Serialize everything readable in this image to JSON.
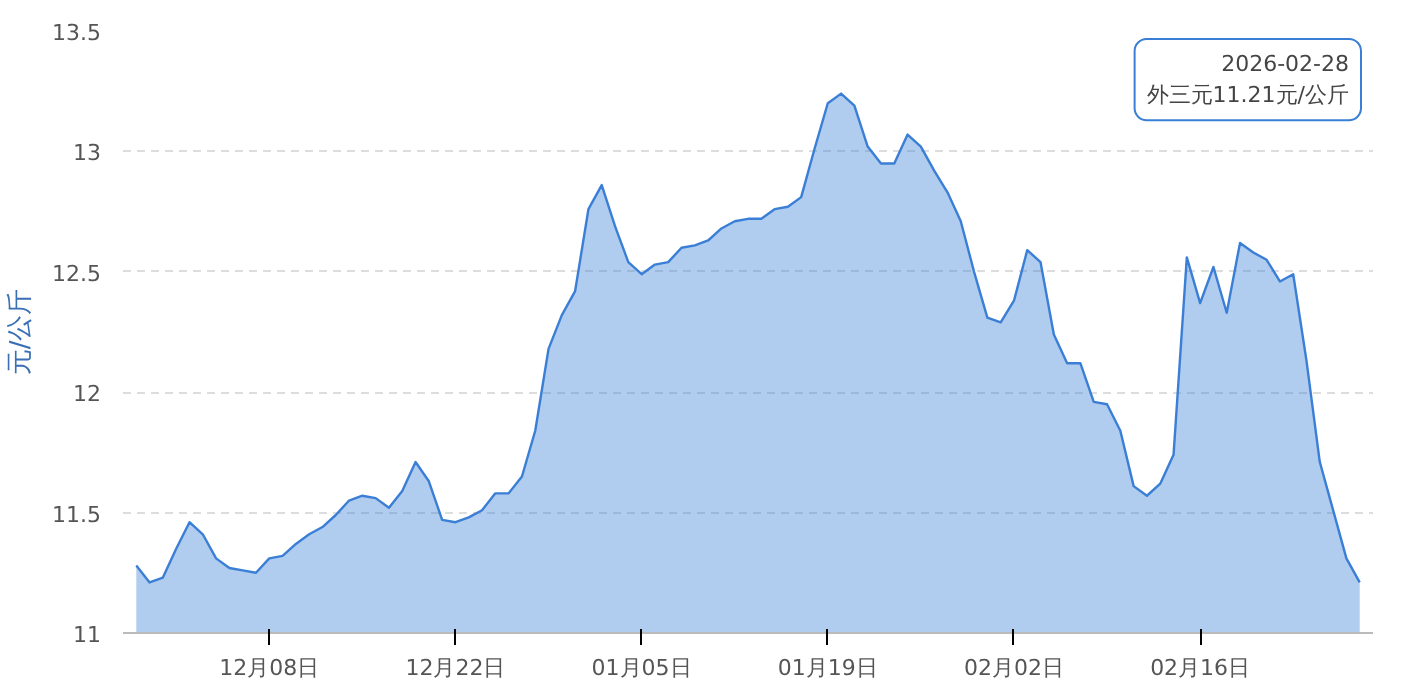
{
  "chart_data": {
    "type": "area",
    "ylabel": "元/公斤",
    "x": [
      "2025-11-28",
      "2025-11-29",
      "2025-11-30",
      "2025-12-01",
      "2025-12-02",
      "2025-12-03",
      "2025-12-04",
      "2025-12-05",
      "2025-12-06",
      "2025-12-07",
      "2025-12-08",
      "2025-12-09",
      "2025-12-10",
      "2025-12-11",
      "2025-12-12",
      "2025-12-13",
      "2025-12-14",
      "2025-12-15",
      "2025-12-16",
      "2025-12-17",
      "2025-12-18",
      "2025-12-19",
      "2025-12-20",
      "2025-12-21",
      "2025-12-22",
      "2025-12-23",
      "2025-12-24",
      "2025-12-25",
      "2025-12-26",
      "2025-12-27",
      "2025-12-28",
      "2025-12-29",
      "2025-12-30",
      "2025-12-31",
      "2026-01-01",
      "2026-01-02",
      "2026-01-03",
      "2026-01-04",
      "2026-01-05",
      "2026-01-06",
      "2026-01-07",
      "2026-01-08",
      "2026-01-09",
      "2026-01-10",
      "2026-01-11",
      "2026-01-12",
      "2026-01-13",
      "2026-01-14",
      "2026-01-15",
      "2026-01-16",
      "2026-01-17",
      "2026-01-18",
      "2026-01-19",
      "2026-01-20",
      "2026-01-21",
      "2026-01-22",
      "2026-01-23",
      "2026-01-24",
      "2026-01-25",
      "2026-01-26",
      "2026-01-27",
      "2026-01-28",
      "2026-01-29",
      "2026-01-30",
      "2026-01-31",
      "2026-02-01",
      "2026-02-02",
      "2026-02-03",
      "2026-02-04",
      "2026-02-05",
      "2026-02-06",
      "2026-02-07",
      "2026-02-08",
      "2026-02-09",
      "2026-02-10",
      "2026-02-11",
      "2026-02-12",
      "2026-02-13",
      "2026-02-14",
      "2026-02-15",
      "2026-02-16",
      "2026-02-17",
      "2026-02-18",
      "2026-02-19",
      "2026-02-20",
      "2026-02-21",
      "2026-02-22",
      "2026-02-23",
      "2026-02-24",
      "2026-02-25",
      "2026-02-26",
      "2026-02-27",
      "2026-02-28"
    ],
    "series": [
      {
        "color": "#3a7fd5",
        "values": [
          11.28,
          11.21,
          11.23,
          11.35,
          11.46,
          11.41,
          11.31,
          11.27,
          11.26,
          11.25,
          11.31,
          11.32,
          11.37,
          11.41,
          11.44,
          11.49,
          11.55,
          11.57,
          11.56,
          11.52,
          11.59,
          11.71,
          11.63,
          11.47,
          11.46,
          11.48,
          11.51,
          11.58,
          11.58,
          11.65,
          11.84,
          12.18,
          12.32,
          12.42,
          12.76,
          12.86,
          12.69,
          12.54,
          12.49,
          12.53,
          12.54,
          12.6,
          12.61,
          12.63,
          12.68,
          12.71,
          12.72,
          12.72,
          12.76,
          12.77,
          12.81,
          13.01,
          13.2,
          13.24,
          13.19,
          13.02,
          12.95,
          12.95,
          13.07,
          13.02,
          12.92,
          12.83,
          12.71,
          12.5,
          12.31,
          12.29,
          12.38,
          12.59,
          12.54,
          12.24,
          12.12,
          12.12,
          11.96,
          11.95,
          11.84,
          11.61,
          11.57,
          11.62,
          11.74,
          12.56,
          12.37,
          12.52,
          12.33,
          12.62,
          12.58,
          12.55,
          12.46,
          12.49,
          12.13,
          11.71,
          11.51,
          11.31,
          11.21
        ]
      }
    ],
    "xlim": [
      "2025-11-27",
      "2026-03-01"
    ],
    "xticks": [
      {
        "value": "2025-12-08",
        "label": "12月08日"
      },
      {
        "value": "2025-12-22",
        "label": "12月22日"
      },
      {
        "value": "2026-01-05",
        "label": "01月05日"
      },
      {
        "value": "2026-01-19",
        "label": "01月19日"
      },
      {
        "value": "2026-02-02",
        "label": "02月02日"
      },
      {
        "value": "2026-02-16",
        "label": "02月16日"
      }
    ],
    "ylim": [
      11,
      13.5
    ],
    "yticks": [
      11,
      11.5,
      12,
      12.5,
      13,
      13.5
    ],
    "grid": "y",
    "annotations": [
      "2026-02-28\n外三元11.21元/公斤"
    ]
  }
}
